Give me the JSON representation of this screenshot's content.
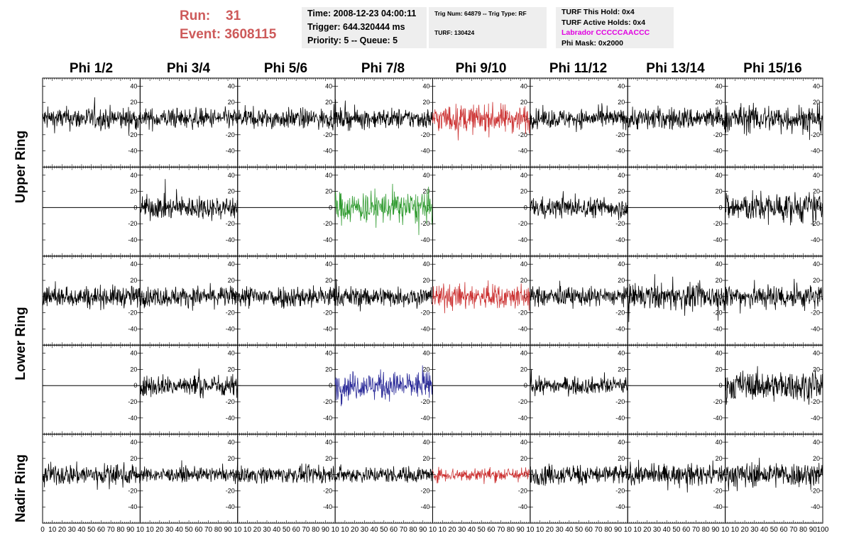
{
  "header": {
    "run_label": "Run:",
    "run_value": "31",
    "event_label": "Event:",
    "event_value": "3608115"
  },
  "info_box_1": {
    "time": "Time: 2008-12-23 04:00:11",
    "trigger": "Trigger: 644.320444 ms",
    "priority": "Priority: 5 -- Queue: 5"
  },
  "info_box_2": {
    "trig": "Trig Num: 64879 -- Trig Type: RF",
    "turf": "TURF: 130424"
  },
  "info_box_3": {
    "this_hold": "TURF This Hold: 0x4",
    "active_holds": "TURF Active Holds: 0x4",
    "labrador": "Labrador CCCCCAACCC",
    "phi_mask": "Phi Mask: 0x2000"
  },
  "colors": {
    "trace_default": "#000000",
    "trace_red": "#cc3333",
    "trace_green": "#2e9a2e",
    "trace_blue": "#2b2b99",
    "run_text": "#cd5a5a",
    "labrador_text": "#e000e0",
    "info_background": "#eeeeee"
  },
  "chart_data": {
    "type": "line",
    "columns": [
      "Phi 1/2",
      "Phi 3/4",
      "Phi 5/6",
      "Phi 7/8",
      "Phi 9/10",
      "Phi 11/12",
      "Phi 13/14",
      "Phi 15/16"
    ],
    "ring_labels": [
      "Upper Ring",
      "Lower Ring",
      "Nadir Ring"
    ],
    "rows": [
      {
        "ring": "Upper Ring",
        "panels": [
          {
            "mode": "noise",
            "amp": 18,
            "color": "black"
          },
          {
            "mode": "noise",
            "amp": 16,
            "color": "black"
          },
          {
            "mode": "noise",
            "amp": 16,
            "color": "black"
          },
          {
            "mode": "noise",
            "amp": 16,
            "color": "black"
          },
          {
            "mode": "noise",
            "amp": 22,
            "color": "red"
          },
          {
            "mode": "noise",
            "amp": 15,
            "color": "black"
          },
          {
            "mode": "noise",
            "amp": 18,
            "color": "black"
          },
          {
            "mode": "noise",
            "amp": 22,
            "color": "black"
          }
        ]
      },
      {
        "ring": "Upper Ring",
        "panels": [
          {
            "mode": "flat"
          },
          {
            "mode": "noise",
            "amp": 18,
            "color": "black"
          },
          {
            "mode": "flat"
          },
          {
            "mode": "noise",
            "amp": 25,
            "color": "green"
          },
          {
            "mode": "flat"
          },
          {
            "mode": "noise",
            "amp": 16,
            "color": "black"
          },
          {
            "mode": "flat"
          },
          {
            "mode": "noise",
            "amp": 24,
            "color": "black"
          }
        ]
      },
      {
        "ring": "Lower Ring",
        "panels": [
          {
            "mode": "noise",
            "amp": 17,
            "color": "black"
          },
          {
            "mode": "noise",
            "amp": 16,
            "color": "black"
          },
          {
            "mode": "noise",
            "amp": 18,
            "color": "black"
          },
          {
            "mode": "noise",
            "amp": 16,
            "color": "black"
          },
          {
            "mode": "noise",
            "amp": 20,
            "color": "red"
          },
          {
            "mode": "noise",
            "amp": 15,
            "color": "black"
          },
          {
            "mode": "noise",
            "amp": 20,
            "color": "black"
          },
          {
            "mode": "noise",
            "amp": 20,
            "color": "black"
          }
        ]
      },
      {
        "ring": "Lower Ring",
        "panels": [
          {
            "mode": "flat"
          },
          {
            "mode": "noise",
            "amp": 17,
            "color": "black"
          },
          {
            "mode": "flat"
          },
          {
            "mode": "noise",
            "amp": 22,
            "color": "blue"
          },
          {
            "mode": "flat"
          },
          {
            "mode": "noise",
            "amp": 13,
            "color": "black"
          },
          {
            "mode": "flat"
          },
          {
            "mode": "noise",
            "amp": 23,
            "color": "black"
          }
        ]
      },
      {
        "ring": "Nadir Ring",
        "panels": [
          {
            "mode": "noise",
            "amp": 17,
            "color": "black"
          },
          {
            "mode": "noise",
            "amp": 11,
            "color": "black"
          },
          {
            "mode": "noise",
            "amp": 13,
            "color": "black"
          },
          {
            "mode": "noise",
            "amp": 13,
            "color": "black"
          },
          {
            "mode": "noise",
            "amp": 11,
            "color": "red"
          },
          {
            "mode": "noise",
            "amp": 16,
            "color": "black"
          },
          {
            "mode": "noise",
            "amp": 16,
            "color": "black"
          },
          {
            "mode": "noise",
            "amp": 20,
            "color": "black"
          }
        ]
      }
    ],
    "xlim": [
      0,
      100
    ],
    "ylim": [
      -60,
      50
    ],
    "yticks": [
      "40",
      "20",
      "0",
      "-20",
      "-40"
    ],
    "ytick_values": [
      40,
      20,
      0,
      -20,
      -40
    ],
    "bottom_xticks": [
      [
        "0",
        "10",
        "20",
        "30",
        "40",
        "50",
        "60",
        "70",
        "80",
        "90",
        "10"
      ],
      [
        "10",
        "20",
        "30",
        "40",
        "50",
        "60",
        "70",
        "80",
        "90",
        "10"
      ],
      [
        "10",
        "20",
        "30",
        "40",
        "50",
        "60",
        "70",
        "80",
        "90",
        "10"
      ],
      [
        "10",
        "20",
        "30",
        "40",
        "50",
        "60",
        "70",
        "80",
        "90",
        "10"
      ],
      [
        "10",
        "20",
        "30",
        "40",
        "50",
        "60",
        "70",
        "80",
        "90",
        "10"
      ],
      [
        "10",
        "20",
        "30",
        "40",
        "50",
        "60",
        "70",
        "80",
        "90",
        "10"
      ],
      [
        "10",
        "20",
        "30",
        "40",
        "50",
        "60",
        "70",
        "80",
        "90",
        "10"
      ],
      [
        "10",
        "20",
        "30",
        "40",
        "50",
        "60",
        "70",
        "80",
        "90",
        "100"
      ]
    ]
  }
}
